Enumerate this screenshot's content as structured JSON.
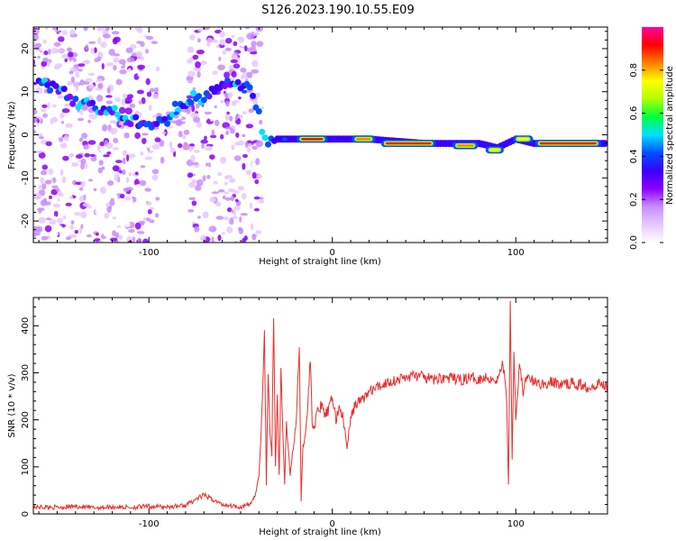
{
  "title": "S126.2023.190.10.55.E09",
  "chart_data": [
    {
      "type": "heatmap",
      "xlabel": "Height of straight line (km)",
      "ylabel": "Frequency (Hz)",
      "xlim": [
        -163,
        150
      ],
      "ylim": [
        -25,
        25
      ],
      "x_ticks": [
        -100,
        0,
        100
      ],
      "y_ticks": [
        -20,
        -10,
        0,
        10,
        20
      ],
      "colorbar": {
        "label": "Normalized spectral amplitude",
        "ticks": [
          "0.0",
          "0.2",
          "0.4",
          "0.6",
          "0.8"
        ],
        "range": [
          0,
          1
        ],
        "colors": [
          "#ffffff",
          "#e6c8ff",
          "#c88cff",
          "#8a00ff",
          "#3a00ff",
          "#0050ff",
          "#00e0ff",
          "#00ff40",
          "#b0ff00",
          "#ffff00",
          "#ff8000",
          "#ff0000",
          "#ff00a0"
        ]
      },
      "ridge": [
        {
          "x": -160,
          "f": 12
        },
        {
          "x": -140,
          "f": 8
        },
        {
          "x": -120,
          "f": 5
        },
        {
          "x": -110,
          "f": 3
        },
        {
          "x": -100,
          "f": 2
        },
        {
          "x": -90,
          "f": 4
        },
        {
          "x": -80,
          "f": 8
        },
        {
          "x": -70,
          "f": 9
        },
        {
          "x": -60,
          "f": 11
        },
        {
          "x": -50,
          "f": 12
        },
        {
          "x": -45,
          "f": 10
        },
        {
          "x": -40,
          "f": 4
        },
        {
          "x": -35,
          "f": -2
        },
        {
          "x": -30,
          "f": -1
        },
        {
          "x": -20,
          "f": -1
        },
        {
          "x": 0,
          "f": -1
        },
        {
          "x": 20,
          "f": -1
        },
        {
          "x": 50,
          "f": -2
        },
        {
          "x": 80,
          "f": -2
        },
        {
          "x": 90,
          "f": -3
        },
        {
          "x": 95,
          "f": -2
        },
        {
          "x": 100,
          "f": -1
        },
        {
          "x": 110,
          "f": -2
        },
        {
          "x": 150,
          "f": -2
        }
      ],
      "hot_segments": [
        {
          "x0": -18,
          "x1": -4,
          "f": -1,
          "level": 1.0
        },
        {
          "x0": 12,
          "x1": 22,
          "f": -1,
          "level": 0.9
        },
        {
          "x0": 28,
          "x1": 55,
          "f": -2,
          "level": 1.0
        },
        {
          "x0": 67,
          "x1": 78,
          "f": -2.5,
          "level": 0.85
        },
        {
          "x0": 85,
          "x1": 92,
          "f": -3.5,
          "level": 0.8
        },
        {
          "x0": 100,
          "x1": 108,
          "f": -1,
          "level": 0.75
        },
        {
          "x0": 112,
          "x1": 145,
          "f": -2,
          "level": 1.0
        }
      ]
    },
    {
      "type": "line",
      "xlabel": "Height of straight line (km)",
      "ylabel": "SNR (10 * v/v)",
      "xlim": [
        -163,
        150
      ],
      "ylim": [
        0,
        460
      ],
      "x_ticks": [
        -100,
        0,
        100
      ],
      "y_ticks": [
        0,
        100,
        200,
        300,
        400
      ],
      "series": [
        {
          "color": "#e83030",
          "points": [
            [
              -163,
              15
            ],
            [
              -150,
              14
            ],
            [
              -140,
              16
            ],
            [
              -130,
              13
            ],
            [
              -120,
              15
            ],
            [
              -110,
              14
            ],
            [
              -100,
              16
            ],
            [
              -90,
              15
            ],
            [
              -80,
              18
            ],
            [
              -75,
              30
            ],
            [
              -70,
              40
            ],
            [
              -65,
              30
            ],
            [
              -60,
              20
            ],
            [
              -55,
              18
            ],
            [
              -50,
              15
            ],
            [
              -45,
              20
            ],
            [
              -42,
              40
            ],
            [
              -40,
              80
            ],
            [
              -38,
              250
            ],
            [
              -37,
              390
            ],
            [
              -36,
              60
            ],
            [
              -35,
              300
            ],
            [
              -34,
              180
            ],
            [
              -33,
              120
            ],
            [
              -32,
              420
            ],
            [
              -31,
              100
            ],
            [
              -30,
              250
            ],
            [
              -29,
              80
            ],
            [
              -28,
              300
            ],
            [
              -27,
              180
            ],
            [
              -26,
              60
            ],
            [
              -25,
              200
            ],
            [
              -24,
              140
            ],
            [
              -23,
              80
            ],
            [
              -22,
              120
            ],
            [
              -20,
              180
            ],
            [
              -19,
              260
            ],
            [
              -18,
              355
            ],
            [
              -17,
              30
            ],
            [
              -16,
              150
            ],
            [
              -14,
              190
            ],
            [
              -12,
              330
            ],
            [
              -11,
              200
            ],
            [
              -10,
              180
            ],
            [
              -8,
              220
            ],
            [
              -6,
              230
            ],
            [
              -4,
              210
            ],
            [
              -2,
              220
            ],
            [
              0,
              250
            ],
            [
              2,
              200
            ],
            [
              4,
              230
            ],
            [
              6,
              200
            ],
            [
              8,
              140
            ],
            [
              10,
              200
            ],
            [
              12,
              230
            ],
            [
              15,
              240
            ],
            [
              18,
              250
            ],
            [
              20,
              260
            ],
            [
              25,
              270
            ],
            [
              30,
              280
            ],
            [
              35,
              285
            ],
            [
              40,
              290
            ],
            [
              45,
              295
            ],
            [
              50,
              290
            ],
            [
              55,
              285
            ],
            [
              60,
              290
            ],
            [
              65,
              288
            ],
            [
              70,
              285
            ],
            [
              75,
              290
            ],
            [
              80,
              288
            ],
            [
              85,
              290
            ],
            [
              90,
              285
            ],
            [
              93,
              320
            ],
            [
              95,
              250
            ],
            [
              96,
              60
            ],
            [
              97,
              460
            ],
            [
              98,
              120
            ],
            [
              99,
              350
            ],
            [
              100,
              200
            ],
            [
              102,
              320
            ],
            [
              104,
              260
            ],
            [
              106,
              290
            ],
            [
              110,
              280
            ],
            [
              115,
              275
            ],
            [
              120,
              280
            ],
            [
              125,
              275
            ],
            [
              130,
              278
            ],
            [
              135,
              275
            ],
            [
              140,
              270
            ],
            [
              145,
              278
            ],
            [
              150,
              272
            ]
          ]
        }
      ]
    }
  ]
}
